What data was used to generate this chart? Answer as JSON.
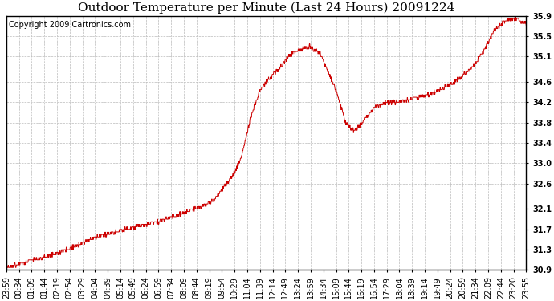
{
  "title": "Outdoor Temperature per Minute (Last 24 Hours) 20091224",
  "copyright": "Copyright 2009 Cartronics.com",
  "background_color": "#ffffff",
  "plot_bg_color": "#ffffff",
  "line_color": "#cc0000",
  "grid_color": "#bbbbbb",
  "ylim": [
    30.9,
    35.9
  ],
  "yticks": [
    30.9,
    31.3,
    31.7,
    32.1,
    32.6,
    33.0,
    33.4,
    33.8,
    34.2,
    34.6,
    35.1,
    35.5,
    35.9
  ],
  "xtick_labels": [
    "23:59",
    "00:34",
    "01:09",
    "01:44",
    "02:19",
    "02:54",
    "03:29",
    "04:04",
    "04:39",
    "05:14",
    "05:49",
    "06:24",
    "06:59",
    "07:34",
    "08:09",
    "08:44",
    "09:19",
    "09:54",
    "10:29",
    "11:04",
    "11:39",
    "12:14",
    "12:49",
    "13:24",
    "13:59",
    "14:34",
    "15:09",
    "15:44",
    "16:19",
    "16:54",
    "17:29",
    "18:04",
    "18:39",
    "19:14",
    "19:49",
    "20:24",
    "20:59",
    "21:34",
    "22:09",
    "22:44",
    "23:20",
    "23:55"
  ],
  "waypoints_t": [
    0,
    50,
    100,
    150,
    200,
    250,
    300,
    360,
    420,
    480,
    540,
    570,
    600,
    630,
    650,
    660,
    670,
    680,
    690,
    700,
    720,
    740,
    760,
    780,
    800,
    820,
    840,
    870,
    890,
    910,
    940,
    960,
    980,
    1000,
    1020,
    1050,
    1080,
    1110,
    1140,
    1170,
    1200,
    1230,
    1260,
    1290,
    1320,
    1350,
    1380,
    1410,
    1439
  ],
  "waypoints_y": [
    30.95,
    31.05,
    31.15,
    31.25,
    31.4,
    31.55,
    31.65,
    31.75,
    31.85,
    32.0,
    32.15,
    32.25,
    32.5,
    32.8,
    33.1,
    33.4,
    33.7,
    34.0,
    34.2,
    34.4,
    34.6,
    34.75,
    34.9,
    35.1,
    35.2,
    35.25,
    35.3,
    35.15,
    34.8,
    34.5,
    33.8,
    33.65,
    33.75,
    33.95,
    34.1,
    34.2,
    34.2,
    34.25,
    34.3,
    34.35,
    34.45,
    34.55,
    34.7,
    34.9,
    35.2,
    35.6,
    35.8,
    35.85,
    35.75
  ],
  "title_fontsize": 11,
  "tick_fontsize": 7,
  "copyright_fontsize": 7
}
